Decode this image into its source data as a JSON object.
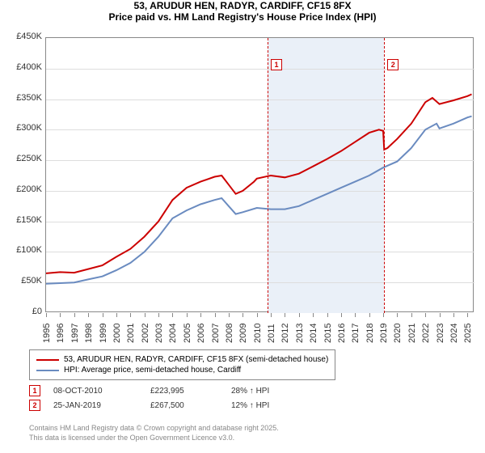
{
  "title_line1": "53, ARUDUR HEN, RADYR, CARDIFF, CF15 8FX",
  "title_line2": "Price paid vs. HM Land Registry's House Price Index (HPI)",
  "chart": {
    "type": "line",
    "background_color": "#ffffff",
    "shaded_band_color": "#eaf0f8",
    "shaded_band_xstart": 2010.77,
    "shaded_band_xend": 2019.07,
    "grid_color": "#dddddd",
    "border_color": "#888888",
    "xlim": [
      1995,
      2025.5
    ],
    "ylim": [
      0,
      450000
    ],
    "y_ticks": [
      0,
      50000,
      100000,
      150000,
      200000,
      250000,
      300000,
      350000,
      400000,
      450000
    ],
    "y_tick_labels": [
      "£0",
      "£50K",
      "£100K",
      "£150K",
      "£200K",
      "£250K",
      "£300K",
      "£350K",
      "£400K",
      "£450K"
    ],
    "x_ticks": [
      1995,
      1996,
      1997,
      1998,
      1999,
      2000,
      2001,
      2002,
      2003,
      2004,
      2005,
      2006,
      2007,
      2008,
      2009,
      2010,
      2011,
      2012,
      2013,
      2014,
      2015,
      2016,
      2017,
      2018,
      2019,
      2020,
      2021,
      2022,
      2023,
      2024,
      2025
    ],
    "x_tick_labels": [
      "1995",
      "1996",
      "1997",
      "1998",
      "1999",
      "2000",
      "2001",
      "2002",
      "2003",
      "2004",
      "2005",
      "2006",
      "2007",
      "2008",
      "2009",
      "2010",
      "2011",
      "2012",
      "2013",
      "2014",
      "2015",
      "2016",
      "2017",
      "2018",
      "2019",
      "2020",
      "2021",
      "2022",
      "2023",
      "2024",
      "2025"
    ],
    "series": [
      {
        "name": "price_paid",
        "color": "#cc0000",
        "line_width": 2,
        "data": [
          [
            1995,
            65000
          ],
          [
            1996,
            67000
          ],
          [
            1997,
            66000
          ],
          [
            1998,
            72000
          ],
          [
            1999,
            78000
          ],
          [
            2000,
            92000
          ],
          [
            2001,
            105000
          ],
          [
            2002,
            125000
          ],
          [
            2003,
            150000
          ],
          [
            2004,
            185000
          ],
          [
            2005,
            205000
          ],
          [
            2006,
            215000
          ],
          [
            2007,
            223000
          ],
          [
            2007.5,
            225000
          ],
          [
            2008,
            210000
          ],
          [
            2008.5,
            195000
          ],
          [
            2009,
            200000
          ],
          [
            2009.8,
            215000
          ],
          [
            2010,
            220000
          ],
          [
            2010.77,
            223995
          ],
          [
            2011,
            225000
          ],
          [
            2012,
            222000
          ],
          [
            2013,
            228000
          ],
          [
            2014,
            240000
          ],
          [
            2015,
            252000
          ],
          [
            2016,
            265000
          ],
          [
            2017,
            280000
          ],
          [
            2018,
            295000
          ],
          [
            2018.7,
            300000
          ],
          [
            2019,
            298000
          ],
          [
            2019.07,
            267500
          ],
          [
            2019.3,
            270000
          ],
          [
            2020,
            285000
          ],
          [
            2021,
            310000
          ],
          [
            2022,
            345000
          ],
          [
            2022.5,
            352000
          ],
          [
            2023,
            342000
          ],
          [
            2024,
            348000
          ],
          [
            2025,
            355000
          ],
          [
            2025.3,
            358000
          ]
        ]
      },
      {
        "name": "hpi",
        "color": "#6a8bc0",
        "line_width": 2,
        "data": [
          [
            1995,
            48000
          ],
          [
            1996,
            49000
          ],
          [
            1997,
            50000
          ],
          [
            1998,
            55000
          ],
          [
            1999,
            60000
          ],
          [
            2000,
            70000
          ],
          [
            2001,
            82000
          ],
          [
            2002,
            100000
          ],
          [
            2003,
            125000
          ],
          [
            2004,
            155000
          ],
          [
            2005,
            168000
          ],
          [
            2006,
            178000
          ],
          [
            2007,
            185000
          ],
          [
            2007.5,
            188000
          ],
          [
            2008,
            175000
          ],
          [
            2008.5,
            162000
          ],
          [
            2009,
            165000
          ],
          [
            2010,
            172000
          ],
          [
            2011,
            170000
          ],
          [
            2012,
            170000
          ],
          [
            2013,
            175000
          ],
          [
            2014,
            185000
          ],
          [
            2015,
            195000
          ],
          [
            2016,
            205000
          ],
          [
            2017,
            215000
          ],
          [
            2018,
            225000
          ],
          [
            2019,
            238000
          ],
          [
            2020,
            248000
          ],
          [
            2021,
            270000
          ],
          [
            2022,
            300000
          ],
          [
            2022.8,
            310000
          ],
          [
            2023,
            302000
          ],
          [
            2024,
            310000
          ],
          [
            2025,
            320000
          ],
          [
            2025.3,
            322000
          ]
        ]
      }
    ],
    "markers": [
      {
        "label": "1",
        "x": 2010.77
      },
      {
        "label": "2",
        "x": 2019.07
      }
    ],
    "marker_line_color": "#cc0000"
  },
  "legend": {
    "items": [
      {
        "color": "#cc0000",
        "label": "53, ARUDUR HEN, RADYR, CARDIFF, CF15 8FX (semi-detached house)"
      },
      {
        "color": "#6a8bc0",
        "label": "HPI: Average price, semi-detached house, Cardiff"
      }
    ]
  },
  "events": [
    {
      "badge": "1",
      "date": "08-OCT-2010",
      "price": "£223,995",
      "diff": "28% ↑ HPI"
    },
    {
      "badge": "2",
      "date": "25-JAN-2019",
      "price": "£267,500",
      "diff": "12% ↑ HPI"
    }
  ],
  "footer_line1": "Contains HM Land Registry data © Crown copyright and database right 2025.",
  "footer_line2": "This data is licensed under the Open Government Licence v3.0."
}
